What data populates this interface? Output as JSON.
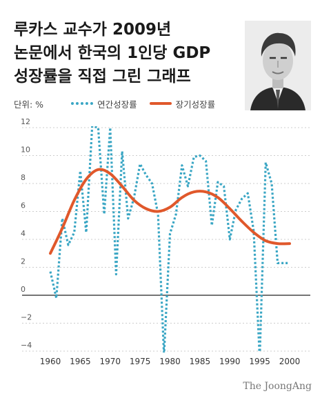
{
  "title_lines": [
    "루카스 교수가 2009년",
    "논문에서 한국의 1인당 GDP",
    "성장률을 직접 그린 그래프"
  ],
  "unit_label": "단위: %",
  "source": "The JoongAng",
  "colors": {
    "annual": "#3aa6c4",
    "longterm": "#e0582b",
    "grid": "#cccccc",
    "zero": "#222222"
  },
  "chart_data": {
    "type": "line",
    "title": "",
    "xlabel": "",
    "ylabel": "단위: %",
    "xlim": [
      1960,
      2000
    ],
    "ylim": [
      -4,
      12
    ],
    "x_ticks": [
      1960,
      1965,
      1970,
      1975,
      1980,
      1985,
      1990,
      1995,
      2000
    ],
    "y_ticks": [
      -4,
      -2,
      0,
      2,
      4,
      6,
      8,
      10,
      12
    ],
    "grid": "horizontal dashed",
    "legend": "top-left",
    "series": [
      {
        "name": "연간성장률",
        "style": "dotted",
        "x": [
          1960,
          1961,
          1962,
          1963,
          1964,
          1965,
          1966,
          1967,
          1968,
          1969,
          1970,
          1971,
          1972,
          1973,
          1974,
          1975,
          1976,
          1977,
          1978,
          1979,
          1980,
          1981,
          1982,
          1983,
          1984,
          1985,
          1986,
          1987,
          1988,
          1989,
          1990,
          1991,
          1992,
          1993,
          1994,
          1995,
          1996,
          1997,
          1998,
          1999,
          2000
        ],
        "values": [
          1.7,
          -0.2,
          5.5,
          3.6,
          4.5,
          8.9,
          4.5,
          12.1,
          12.0,
          5.8,
          12.0,
          1.5,
          10.3,
          5.5,
          7.0,
          9.4,
          8.6,
          8.0,
          5.8,
          -4.3,
          4.4,
          5.8,
          9.3,
          7.8,
          9.9,
          10.0,
          9.6,
          5.0,
          8.1,
          7.8,
          4.0,
          6.1,
          6.9,
          7.3,
          4.6,
          -4.5,
          9.5,
          8.0,
          2.3,
          2.3,
          2.3
        ]
      },
      {
        "name": "장기성장률",
        "style": "solid",
        "x": [
          1960,
          1962,
          1964,
          1966,
          1968,
          1970,
          1972,
          1974,
          1976,
          1978,
          1980,
          1982,
          1984,
          1986,
          1988,
          1990,
          1992,
          1994,
          1996,
          1998,
          2000
        ],
        "values": [
          3.0,
          4.8,
          6.8,
          8.3,
          9.0,
          8.7,
          7.8,
          6.8,
          6.2,
          6.0,
          6.3,
          7.0,
          7.4,
          7.4,
          7.0,
          6.2,
          5.3,
          4.5,
          3.9,
          3.7,
          3.7
        ]
      }
    ]
  }
}
